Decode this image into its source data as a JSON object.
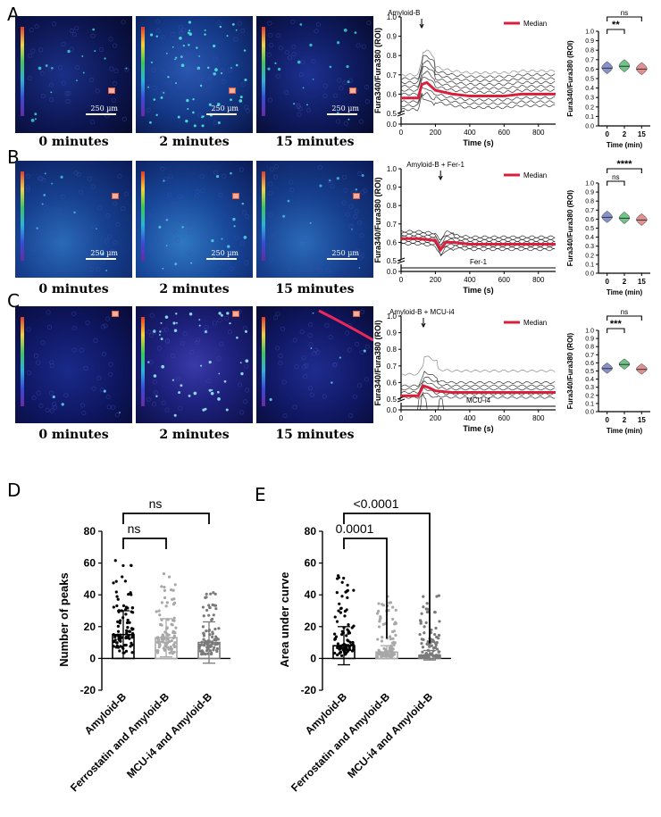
{
  "panel_letters": {
    "a": "A",
    "b": "B",
    "c": "C",
    "d": "D",
    "e": "E"
  },
  "time_labels": [
    "0 minutes",
    "2 minutes",
    "15 minutes"
  ],
  "scale_label": "250 µm",
  "colors": {
    "median": "#d81f3c",
    "trace": "#000000",
    "violet": "#7b86c7",
    "green": "#5fbf7a",
    "pink": "#e08585",
    "blue_field": "#1a2a8a"
  },
  "chart_data": [
    {
      "id": "A_trace",
      "type": "line",
      "annotation": "Amyloid-B",
      "legend": "Median",
      "xlabel": "Time (s)",
      "ylabel": "Fura340/Fura380 (ROI)",
      "xlim": [
        0,
        900
      ],
      "ylim": [
        0.0,
        1.0
      ],
      "xticks": [
        0,
        200,
        400,
        600,
        800
      ],
      "yticks": [
        0.0,
        0.5,
        0.6,
        0.7,
        0.8,
        0.9,
        1.0
      ],
      "stim_time": 120,
      "median": {
        "x": [
          0,
          100,
          120,
          150,
          200,
          300,
          400,
          500,
          600,
          700,
          800,
          900
        ],
        "y": [
          0.58,
          0.58,
          0.65,
          0.66,
          0.62,
          0.6,
          0.59,
          0.59,
          0.59,
          0.6,
          0.6,
          0.6
        ]
      },
      "series_offsets": [
        -0.06,
        -0.04,
        -0.02,
        0.0,
        0.02,
        0.04,
        0.06,
        0.08,
        0.1,
        0.12
      ]
    },
    {
      "id": "A_violin",
      "type": "violin",
      "xlabel": "Time (min)",
      "ylabel": "Fura340/Fura380 (ROI)",
      "categories": [
        "0",
        "2",
        "15"
      ],
      "medians": [
        0.61,
        0.63,
        0.6
      ],
      "ylim": [
        0.0,
        1.0
      ],
      "yticks": [
        0.0,
        0.1,
        0.2,
        0.3,
        0.4,
        0.5,
        0.6,
        0.7,
        0.8,
        0.9,
        1.0
      ],
      "comparisons": [
        {
          "from": 0,
          "to": 1,
          "label": "**"
        },
        {
          "from": 0,
          "to": 2,
          "label": "ns"
        }
      ]
    },
    {
      "id": "B_trace",
      "type": "line",
      "annotation": "Amyloid-B + Fer-1",
      "legend": "Median",
      "treatment_label": "Fer-1",
      "xlabel": "Time (s)",
      "ylabel": "Fura340/Fura380 (ROI)",
      "xlim": [
        0,
        900
      ],
      "ylim": [
        0.0,
        1.0
      ],
      "xticks": [
        0,
        200,
        400,
        600,
        800
      ],
      "yticks": [
        0.0,
        0.5,
        0.6,
        0.7,
        0.8,
        0.9,
        1.0
      ],
      "stim_time": 230,
      "median": {
        "x": [
          0,
          100,
          200,
          230,
          260,
          300,
          400,
          500,
          600,
          700,
          800,
          900
        ],
        "y": [
          0.62,
          0.62,
          0.61,
          0.56,
          0.6,
          0.6,
          0.59,
          0.59,
          0.59,
          0.59,
          0.59,
          0.59
        ]
      },
      "series_offsets": [
        -0.03,
        -0.02,
        -0.01,
        0.0,
        0.01,
        0.02,
        0.03,
        0.04
      ]
    },
    {
      "id": "B_violin",
      "type": "violin",
      "xlabel": "Time (min)",
      "ylabel": "Fura340/Fura380 (ROI)",
      "categories": [
        "0",
        "2",
        "15"
      ],
      "medians": [
        0.62,
        0.61,
        0.59
      ],
      "ylim": [
        0.0,
        1.0
      ],
      "yticks": [
        0.0,
        0.1,
        0.2,
        0.3,
        0.4,
        0.5,
        0.6,
        0.7,
        0.8,
        0.9,
        1.0
      ],
      "comparisons": [
        {
          "from": 0,
          "to": 1,
          "label": "ns"
        },
        {
          "from": 0,
          "to": 2,
          "label": "****"
        }
      ]
    },
    {
      "id": "C_trace",
      "type": "line",
      "annotation": "Amyloid-B + MCU-i4",
      "legend": "Median",
      "treatment_label": "MCU-i4",
      "xlabel": "Time (s)",
      "ylabel": "Fura340/Fura380 (ROI)",
      "xlim": [
        0,
        900
      ],
      "ylim": [
        0.0,
        1.0
      ],
      "xticks": [
        0,
        200,
        400,
        600,
        800
      ],
      "yticks": [
        0.0,
        0.5,
        0.6,
        0.7,
        0.8,
        0.9,
        1.0
      ],
      "stim_time": 130,
      "median": {
        "x": [
          0,
          100,
          130,
          160,
          200,
          300,
          400,
          500,
          600,
          700,
          800,
          900
        ],
        "y": [
          0.52,
          0.52,
          0.58,
          0.57,
          0.55,
          0.54,
          0.54,
          0.54,
          0.54,
          0.54,
          0.54,
          0.54
        ]
      },
      "series_offsets": [
        -0.05,
        -0.03,
        -0.01,
        0.0,
        0.02,
        0.04,
        0.06,
        0.13
      ]
    },
    {
      "id": "C_violin",
      "type": "violin",
      "xlabel": "Time (min)",
      "ylabel": "Fura340/Fura380 (ROI)",
      "categories": [
        "0",
        "2",
        "15"
      ],
      "medians": [
        0.53,
        0.58,
        0.52
      ],
      "ylim": [
        0.0,
        1.0
      ],
      "yticks": [
        0.0,
        0.1,
        0.2,
        0.3,
        0.4,
        0.5,
        0.6,
        0.7,
        0.8,
        0.9,
        1.0
      ],
      "comparisons": [
        {
          "from": 0,
          "to": 1,
          "label": "***"
        },
        {
          "from": 0,
          "to": 2,
          "label": "ns"
        }
      ]
    },
    {
      "id": "D",
      "type": "bar",
      "ylabel": "Number of peaks",
      "categories": [
        "Amyloid-B",
        "Ferrostatin and Amyloid-B",
        "MCU-i4 and Amyloid-B"
      ],
      "values": [
        15,
        13,
        10
      ],
      "sd": [
        15,
        12,
        13
      ],
      "bar_colors": [
        "#000000",
        "#a8a8a8",
        "#7a7a7a"
      ],
      "ylim": [
        -20,
        80
      ],
      "yticks": [
        -20,
        0,
        20,
        40,
        60,
        80
      ],
      "comparisons": [
        {
          "from": 0,
          "to": 1,
          "label": "ns"
        },
        {
          "from": 0,
          "to": 2,
          "label": "ns"
        }
      ]
    },
    {
      "id": "E",
      "type": "bar",
      "ylabel": "Area under curve",
      "categories": [
        "Amyloid-B",
        "Ferrostatin and Amyloid-B",
        "MCU-i4 and Amyloid-B"
      ],
      "values": [
        8,
        4,
        2
      ],
      "sd": [
        12,
        4,
        3
      ],
      "bar_colors": [
        "#000000",
        "#a8a8a8",
        "#7a7a7a"
      ],
      "ylim": [
        -20,
        80
      ],
      "yticks": [
        -20,
        0,
        20,
        40,
        60,
        80
      ],
      "comparisons": [
        {
          "from": 0,
          "to": 1,
          "label": "0.0001"
        },
        {
          "from": 0,
          "to": 2,
          "label": "<0.0001"
        }
      ]
    }
  ]
}
